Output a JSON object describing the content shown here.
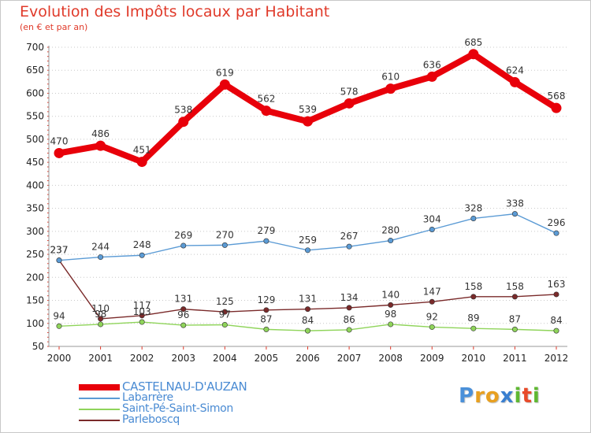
{
  "title": "Evolution des Impôts locaux par Habitant",
  "subtitle": "(en € et par an)",
  "logo": {
    "letters": [
      "P",
      "r",
      "o",
      "x",
      "i",
      "t",
      "i"
    ],
    "colors": [
      "#4a90d9",
      "#e8a020",
      "#e8a020",
      "#3a7fd0",
      "#5fb832",
      "#e84a2a",
      "#5fb832"
    ]
  },
  "chart_data": {
    "type": "line",
    "title": "Evolution des Impôts locaux par Habitant",
    "subtitle": "(en € et par an)",
    "categories": [
      "2000",
      "2001",
      "2002",
      "2003",
      "2004",
      "2005",
      "2006",
      "2007",
      "2008",
      "2009",
      "2010",
      "2011",
      "2012"
    ],
    "ylim": [
      50,
      700
    ],
    "yticks": [
      50,
      100,
      150,
      200,
      250,
      300,
      350,
      400,
      450,
      500,
      550,
      600,
      650,
      700
    ],
    "grid": "horizontal dotted",
    "series": [
      {
        "name": "CASTELNAU-D'AUZAN",
        "color": "#e8000a",
        "values": [
          470,
          486,
          451,
          538,
          619,
          562,
          539,
          578,
          610,
          636,
          685,
          624,
          568
        ],
        "labels": [
          "470",
          "486",
          "451",
          "538",
          "619",
          "562",
          "539",
          "578",
          "610",
          "636",
          "685",
          "624",
          "568"
        ]
      },
      {
        "name": "Labarrère",
        "color": "#5b9bd5",
        "values": [
          237,
          244,
          248,
          269,
          270,
          279,
          259,
          267,
          280,
          304,
          328,
          338,
          296
        ],
        "labels": [
          "237",
          "244",
          "248",
          "269",
          "270",
          "279",
          "259",
          "267",
          "280",
          "304",
          "328",
          "338",
          "296"
        ]
      },
      {
        "name": "Saint-Pé-Saint-Simon",
        "color": "#8fd45a",
        "values": [
          94,
          98,
          103,
          96,
          97,
          87,
          84,
          86,
          98,
          92,
          89,
          87,
          84
        ],
        "labels": [
          "94",
          "98",
          "103",
          "96",
          "97",
          "87",
          "84",
          "86",
          "98",
          "92",
          "89",
          "87",
          "84"
        ]
      },
      {
        "name": "Parleboscq",
        "color": "#7a2a2a",
        "values": [
          237,
          110,
          117,
          131,
          125,
          129,
          131,
          134,
          140,
          147,
          158,
          158,
          163
        ],
        "labels": [
          "237",
          "110",
          "117",
          "131",
          "125",
          "129",
          "131",
          "134",
          "140",
          "147",
          "158",
          "158",
          "163"
        ]
      }
    ]
  }
}
